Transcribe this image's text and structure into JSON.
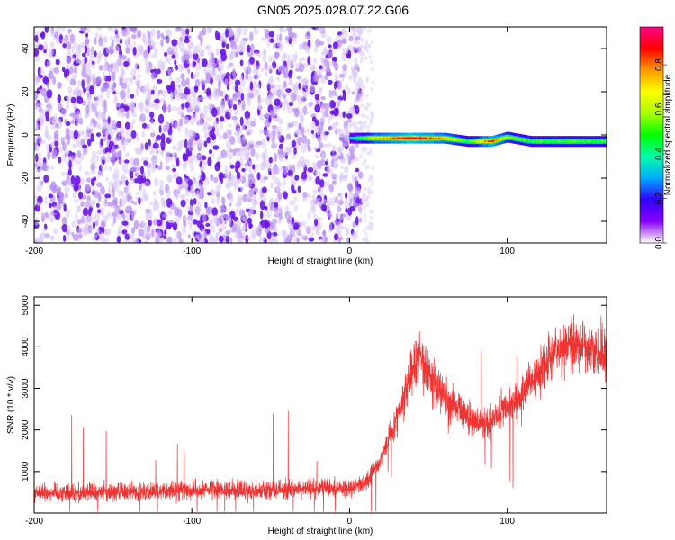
{
  "title": "GN05.2025.028.07.22.G06",
  "chart_data": [
    {
      "type": "heatmap",
      "xlabel": "Height of straight line (km)",
      "ylabel": "Frequency (Hz)",
      "xlim": [
        -200,
        163
      ],
      "ylim": [
        -50,
        50
      ],
      "xticks": [
        -200,
        -100,
        0,
        100
      ],
      "yticks": [
        40,
        20,
        0,
        -20,
        -40
      ],
      "colorbar": {
        "label": "Normalized spectral amplitude",
        "range": [
          0.0,
          0.97
        ],
        "ticks": [
          "0.0",
          "0.2",
          "0.4",
          "0.6",
          "0.8"
        ],
        "tick_values": [
          0.0,
          0.2,
          0.4,
          0.6,
          0.8
        ],
        "colors": [
          "#ffffff",
          "#8800ff",
          "#3300ff",
          "#00aaff",
          "#00ffaa",
          "#00ff00",
          "#aaff00",
          "#ffff00",
          "#ff9900",
          "#ff0000",
          "#ff0088"
        ]
      },
      "noise_region": {
        "x": [
          -200,
          7
        ],
        "y": [
          -50,
          50
        ],
        "amplitude": 0.1
      },
      "signal_track": [
        {
          "x": 0,
          "y": -1.5,
          "amplitude": 0.3
        },
        {
          "x": 15,
          "y": -1.5,
          "amplitude": 0.7
        },
        {
          "x": 40,
          "y": -1.5,
          "amplitude": 0.95
        },
        {
          "x": 60,
          "y": -1.5,
          "amplitude": 0.75
        },
        {
          "x": 75,
          "y": -3.0,
          "amplitude": 0.5
        },
        {
          "x": 90,
          "y": -3.0,
          "amplitude": 0.9
        },
        {
          "x": 100,
          "y": -1.0,
          "amplitude": 0.6
        },
        {
          "x": 115,
          "y": -3.0,
          "amplitude": 0.5
        },
        {
          "x": 140,
          "y": -3.0,
          "amplitude": 0.55
        },
        {
          "x": 163,
          "y": -3.0,
          "amplitude": 0.5
        }
      ]
    },
    {
      "type": "line",
      "xlabel": "Height of straight line (km)",
      "ylabel": "SNR (10 * v/v)",
      "xlim": [
        -200,
        163
      ],
      "ylim": [
        0,
        5200
      ],
      "xticks": [
        -200,
        -100,
        0,
        100
      ],
      "yticks": [
        1000,
        2000,
        3000,
        4000,
        5000
      ],
      "series": [
        {
          "color": "#ee3333",
          "x": [
            -200,
            -150,
            -100,
            -50,
            0,
            10,
            20,
            30,
            40,
            45,
            50,
            60,
            70,
            80,
            90,
            100,
            110,
            120,
            130,
            140,
            150,
            163
          ],
          "y": [
            500,
            500,
            550,
            550,
            600,
            700,
            1300,
            2300,
            3500,
            3800,
            3400,
            2800,
            2500,
            2150,
            2200,
            2550,
            2900,
            3350,
            3800,
            4100,
            3950,
            3800
          ]
        }
      ]
    }
  ]
}
